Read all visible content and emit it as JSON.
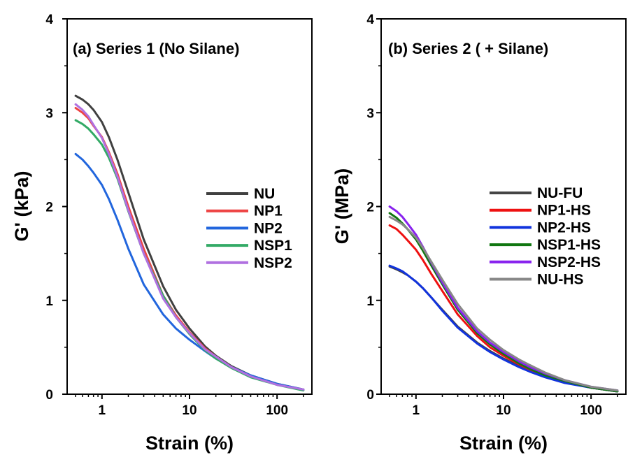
{
  "chart_data": [
    {
      "type": "line",
      "title": "(a) Series 1 (No Silane)",
      "xlabel": "Strain (%)",
      "ylabel": "G' (kPa)",
      "xscale": "log",
      "xlim": [
        0.4,
        250
      ],
      "ylim": [
        0,
        4
      ],
      "xticks": [
        1,
        10,
        100
      ],
      "xtick_labels": [
        "1",
        "10",
        "100"
      ],
      "yticks": [
        0,
        1,
        2,
        3,
        4
      ],
      "ytick_labels": [
        "0",
        "1",
        "2",
        "3",
        "4"
      ],
      "grid": false,
      "legend_position": "right",
      "series": [
        {
          "name": "NU",
          "color": "#404040",
          "x": [
            0.5,
            0.6,
            0.7,
            0.8,
            1.0,
            1.2,
            1.5,
            2.0,
            3.0,
            5.0,
            7.0,
            10,
            15,
            20,
            30,
            50,
            100,
            200
          ],
          "y": [
            3.18,
            3.14,
            3.09,
            3.03,
            2.9,
            2.74,
            2.5,
            2.15,
            1.65,
            1.15,
            0.9,
            0.7,
            0.51,
            0.41,
            0.3,
            0.2,
            0.11,
            0.05
          ]
        },
        {
          "name": "NP1",
          "color": "#ee4444",
          "x": [
            0.5,
            0.6,
            0.7,
            0.8,
            1.0,
            1.2,
            1.5,
            2.0,
            3.0,
            5.0,
            7.0,
            10,
            15,
            20,
            30,
            50,
            100,
            200
          ],
          "y": [
            3.05,
            3.0,
            2.94,
            2.86,
            2.74,
            2.58,
            2.35,
            2.0,
            1.55,
            1.05,
            0.84,
            0.66,
            0.49,
            0.4,
            0.29,
            0.19,
            0.1,
            0.05
          ]
        },
        {
          "name": "NP2",
          "color": "#2266dd",
          "x": [
            0.5,
            0.6,
            0.7,
            0.8,
            1.0,
            1.2,
            1.5,
            2.0,
            3.0,
            5.0,
            7.0,
            10,
            15,
            20,
            30,
            50,
            100,
            200
          ],
          "y": [
            2.56,
            2.5,
            2.43,
            2.36,
            2.23,
            2.08,
            1.86,
            1.55,
            1.17,
            0.85,
            0.7,
            0.58,
            0.46,
            0.38,
            0.29,
            0.2,
            0.11,
            0.05
          ]
        },
        {
          "name": "NSP1",
          "color": "#33aa66",
          "x": [
            0.5,
            0.6,
            0.7,
            0.8,
            1.0,
            1.2,
            1.5,
            2.0,
            3.0,
            5.0,
            7.0,
            10,
            15,
            20,
            30,
            50,
            100,
            200
          ],
          "y": [
            2.92,
            2.88,
            2.83,
            2.77,
            2.66,
            2.52,
            2.3,
            1.95,
            1.5,
            1.05,
            0.82,
            0.64,
            0.47,
            0.38,
            0.28,
            0.18,
            0.1,
            0.04
          ]
        },
        {
          "name": "NSP2",
          "color": "#b070e0",
          "x": [
            0.5,
            0.6,
            0.7,
            0.8,
            1.0,
            1.2,
            1.5,
            2.0,
            3.0,
            5.0,
            7.0,
            10,
            15,
            20,
            30,
            50,
            100,
            200
          ],
          "y": [
            3.09,
            3.03,
            2.96,
            2.87,
            2.73,
            2.56,
            2.32,
            1.96,
            1.5,
            1.02,
            0.82,
            0.65,
            0.48,
            0.4,
            0.29,
            0.19,
            0.1,
            0.05
          ]
        }
      ]
    },
    {
      "type": "line",
      "title": "(b) Series 2 ( + Silane)",
      "xlabel": "Strain (%)",
      "ylabel": "G' (MPa)",
      "xscale": "log",
      "xlim": [
        0.4,
        250
      ],
      "ylim": [
        0,
        4
      ],
      "xticks": [
        1,
        10,
        100
      ],
      "xtick_labels": [
        "1",
        "10",
        "100"
      ],
      "yticks": [
        0,
        1,
        2,
        3,
        4
      ],
      "ytick_labels": [
        "0",
        "1",
        "2",
        "3",
        "4"
      ],
      "grid": false,
      "legend_position": "right",
      "series": [
        {
          "name": "NU-FU",
          "color": "#444444",
          "x": [
            0.5,
            0.6,
            0.7,
            0.8,
            1.0,
            1.2,
            1.5,
            2.0,
            3.0,
            5.0,
            7.0,
            10,
            15,
            20,
            30,
            50,
            100,
            200
          ],
          "y": [
            1.36,
            1.33,
            1.3,
            1.27,
            1.2,
            1.13,
            1.03,
            0.9,
            0.72,
            0.55,
            0.46,
            0.38,
            0.3,
            0.25,
            0.19,
            0.13,
            0.07,
            0.03
          ]
        },
        {
          "name": "NP1-HS",
          "color": "#ee1111",
          "x": [
            0.5,
            0.6,
            0.7,
            0.8,
            1.0,
            1.2,
            1.5,
            2.0,
            3.0,
            5.0,
            7.0,
            10,
            15,
            20,
            30,
            50,
            100,
            200
          ],
          "y": [
            1.8,
            1.76,
            1.7,
            1.64,
            1.54,
            1.43,
            1.28,
            1.1,
            0.85,
            0.62,
            0.5,
            0.41,
            0.32,
            0.26,
            0.2,
            0.13,
            0.07,
            0.03
          ]
        },
        {
          "name": "NP2-HS",
          "color": "#1133dd",
          "x": [
            0.5,
            0.6,
            0.7,
            0.8,
            1.0,
            1.2,
            1.5,
            2.0,
            3.0,
            5.0,
            7.0,
            10,
            15,
            20,
            30,
            50,
            100,
            200
          ],
          "y": [
            1.37,
            1.34,
            1.31,
            1.27,
            1.2,
            1.13,
            1.03,
            0.89,
            0.71,
            0.54,
            0.45,
            0.37,
            0.29,
            0.24,
            0.18,
            0.12,
            0.07,
            0.03
          ]
        },
        {
          "name": "NSP1-HS",
          "color": "#117711",
          "x": [
            0.5,
            0.6,
            0.7,
            0.8,
            1.0,
            1.2,
            1.5,
            2.0,
            3.0,
            5.0,
            7.0,
            10,
            15,
            20,
            30,
            50,
            100,
            200
          ],
          "y": [
            1.93,
            1.88,
            1.82,
            1.76,
            1.65,
            1.53,
            1.37,
            1.17,
            0.9,
            0.65,
            0.53,
            0.43,
            0.33,
            0.27,
            0.2,
            0.14,
            0.07,
            0.03
          ]
        },
        {
          "name": "NSP2-HS",
          "color": "#8822ee",
          "x": [
            0.5,
            0.6,
            0.7,
            0.8,
            1.0,
            1.2,
            1.5,
            2.0,
            3.0,
            5.0,
            7.0,
            10,
            15,
            20,
            30,
            50,
            100,
            200
          ],
          "y": [
            2.0,
            1.95,
            1.89,
            1.82,
            1.7,
            1.57,
            1.4,
            1.19,
            0.92,
            0.67,
            0.55,
            0.45,
            0.35,
            0.29,
            0.22,
            0.15,
            0.08,
            0.04
          ]
        },
        {
          "name": "NU-HS",
          "color": "#888888",
          "x": [
            0.5,
            0.6,
            0.7,
            0.8,
            1.0,
            1.2,
            1.5,
            2.0,
            3.0,
            5.0,
            7.0,
            10,
            15,
            20,
            30,
            50,
            100,
            200
          ],
          "y": [
            1.89,
            1.85,
            1.81,
            1.76,
            1.67,
            1.56,
            1.41,
            1.22,
            0.96,
            0.7,
            0.58,
            0.47,
            0.37,
            0.31,
            0.23,
            0.15,
            0.08,
            0.04
          ]
        }
      ]
    }
  ]
}
